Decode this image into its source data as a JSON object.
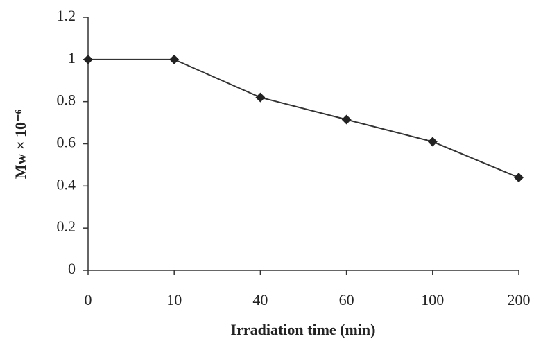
{
  "chart_data": {
    "type": "line",
    "xlabel": "Irradiation time  (min)",
    "ylabel": "Mw × 10⁻⁶",
    "categories": [
      "0",
      "10",
      "40",
      "60",
      "100",
      "200"
    ],
    "values": [
      1.0,
      1.0,
      0.82,
      0.715,
      0.61,
      0.44
    ],
    "color": "#333333",
    "ylim": [
      0,
      1.2
    ],
    "yticks": [
      0,
      0.2,
      0.4,
      0.6,
      0.8,
      1,
      1.2
    ],
    "grid": false
  }
}
